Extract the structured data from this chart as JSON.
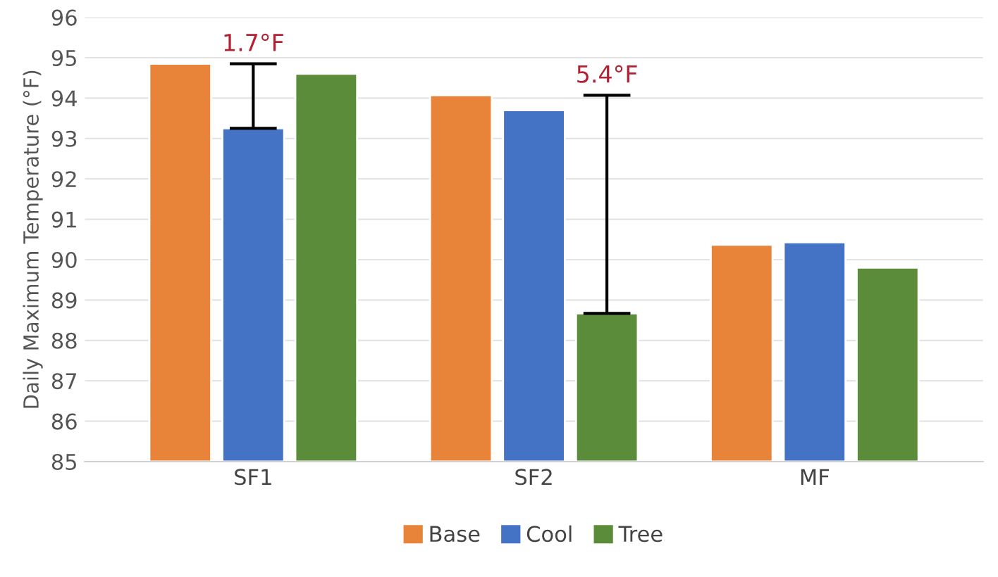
{
  "chart_data": {
    "type": "bar",
    "ylabel": "Daily Maximum Temperature (°F)",
    "categories": [
      "SF1",
      "SF2",
      "MF"
    ],
    "series": [
      {
        "name": "Base",
        "color": "#e8833a",
        "values": [
          94.85,
          94.07,
          90.37
        ]
      },
      {
        "name": "Cool",
        "color": "#4472c4",
        "values": [
          93.25,
          93.7,
          90.43
        ],
        "errors": [
          [
            93.25,
            94.85
          ],
          null,
          null
        ]
      },
      {
        "name": "Tree",
        "color": "#5b8c3a",
        "values": [
          94.6,
          88.67,
          89.8
        ],
        "errors": [
          null,
          [
            88.67,
            94.07
          ],
          null
        ]
      }
    ],
    "annotations": [
      "1.7°F",
      "5.4°F"
    ],
    "ylim": [
      85,
      96
    ],
    "yticks": [
      85,
      86,
      87,
      88,
      89,
      90,
      91,
      92,
      93,
      94,
      95,
      96
    ],
    "grid": "y",
    "legend": "bottom"
  }
}
